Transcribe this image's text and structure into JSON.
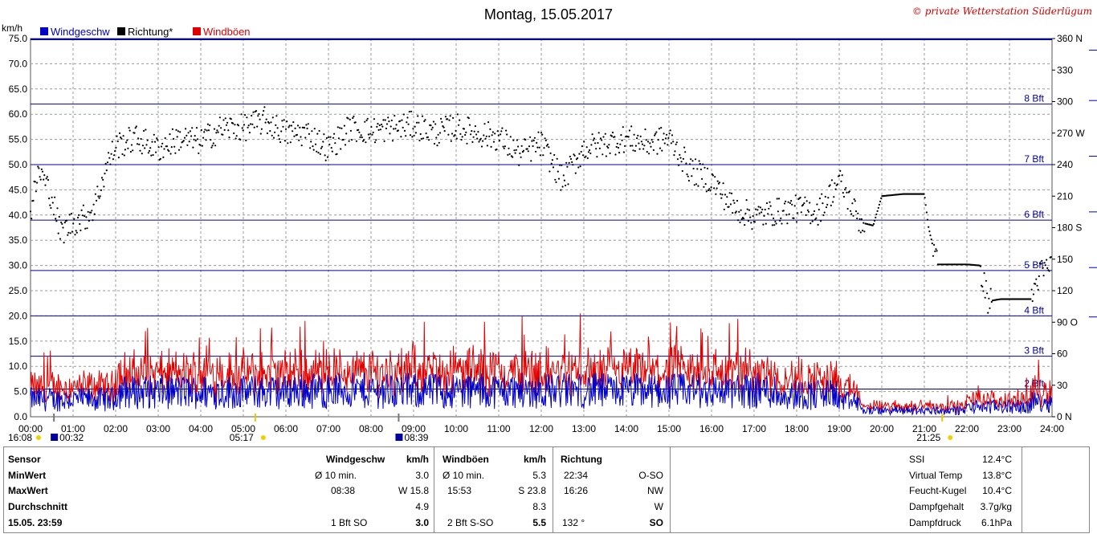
{
  "chart_data": {
    "type": "line",
    "title": "Montag, 15.05.2017",
    "copyright": "© private Wetterstation Süderlügum",
    "ylabel": "km/h",
    "ylim": [
      0,
      75
    ],
    "y_ticks": [
      "0.0",
      "5.0",
      "10.0",
      "15.0",
      "20.0",
      "25.0",
      "30.0",
      "35.0",
      "40.0",
      "45.0",
      "50.0",
      "55.0",
      "60.0",
      "65.0",
      "70.0",
      "75.0"
    ],
    "right_axis_ticks": [
      {
        "v": 0,
        "label": "0 N"
      },
      {
        "v": 30,
        "label": "30"
      },
      {
        "v": 60,
        "label": "60"
      },
      {
        "v": 90,
        "label": "90 O"
      },
      {
        "v": 120,
        "label": "120"
      },
      {
        "v": 150,
        "label": "150"
      },
      {
        "v": 180,
        "label": "180 S"
      },
      {
        "v": 210,
        "label": "210"
      },
      {
        "v": 240,
        "label": "240"
      },
      {
        "v": 270,
        "label": "270 W"
      },
      {
        "v": 300,
        "label": "300"
      },
      {
        "v": 330,
        "label": "330"
      },
      {
        "v": 360,
        "label": "360 N"
      }
    ],
    "x_ticks": [
      "00:00",
      "01:00",
      "02:00",
      "03:00",
      "04:00",
      "05:00",
      "06:00",
      "07:00",
      "08:00",
      "09:00",
      "10:00",
      "11:00",
      "12:00",
      "13:00",
      "14:00",
      "15:00",
      "16:00",
      "17:00",
      "18:00",
      "19:00",
      "20:00",
      "21:00",
      "22:00",
      "23:00",
      "24:00"
    ],
    "xlim": [
      0,
      24
    ],
    "beaufort_lines": [
      {
        "label": "2 Bft",
        "value": 5.5
      },
      {
        "label": "3 Bft",
        "value": 12
      },
      {
        "label": "4 Bft",
        "value": 20
      },
      {
        "label": "5 Bft",
        "value": 29
      },
      {
        "label": "6 Bft",
        "value": 39
      },
      {
        "label": "7 Bft",
        "value": 50
      },
      {
        "label": "8 Bft",
        "value": 62
      }
    ],
    "legend": [
      {
        "label": "Windgeschw",
        "color": "#0000c8"
      },
      {
        "label": "Richtung*",
        "color": "#000000"
      },
      {
        "label": "Windböen",
        "color": "#e00000"
      }
    ],
    "series": [
      {
        "name": "Windgeschw",
        "color": "#0000c8",
        "mean": 4.9,
        "max": 15.8
      },
      {
        "name": "Windböen",
        "color": "#e00000",
        "mean": 8.3,
        "max": 23.8
      },
      {
        "name": "Richtung*",
        "color": "#000000",
        "x": [
          0.0,
          0.2,
          0.5,
          0.7,
          1.0,
          1.3,
          1.5,
          1.8,
          2.0,
          2.5,
          3.0,
          3.5,
          4.0,
          4.5,
          5.0,
          5.5,
          6.0,
          6.5,
          7.0,
          7.5,
          8.0,
          8.5,
          9.0,
          9.5,
          10.0,
          10.5,
          11.0,
          11.5,
          12.0,
          12.5,
          13.0,
          13.5,
          14.0,
          14.5,
          15.0,
          15.5,
          16.0,
          16.5,
          17.0,
          17.5,
          18.0,
          18.5,
          19.0,
          19.5,
          19.8,
          20.0,
          20.5,
          21.0,
          21.1,
          21.3,
          21.5,
          22.0,
          22.3,
          22.5,
          22.8,
          23.0,
          23.5,
          23.7,
          24.0
        ],
        "y": [
          195,
          235,
          210,
          175,
          185,
          190,
          200,
          240,
          258,
          265,
          255,
          265,
          262,
          275,
          275,
          282,
          270,
          270,
          255,
          275,
          272,
          275,
          278,
          270,
          276,
          270,
          266,
          250,
          260,
          225,
          255,
          260,
          265,
          260,
          265,
          235,
          225,
          200,
          190,
          195,
          198,
          195,
          225,
          185,
          182,
          210,
          212,
          212,
          180,
          145,
          145,
          145,
          144,
          110,
          112,
          112,
          112,
          135,
          145
        ]
      }
    ],
    "sun_markers": [
      {
        "time_label": "05:17",
        "x": 5.28
      },
      {
        "time_label": "21:25",
        "x": 21.42
      }
    ],
    "moon_markers": [
      {
        "time_label": "16:08",
        "x": 0.1
      },
      {
        "time_label": "00:32",
        "x": 0.55
      },
      {
        "time_label": "08:39",
        "x": 8.65
      }
    ]
  },
  "table": {
    "col1": {
      "rows": [
        "Sensor",
        "MinWert",
        "MaxWert",
        "Durchschnitt",
        "15.05. 23:59"
      ]
    },
    "speed": {
      "header": "Windgeschw",
      "unit": "km/h",
      "min_label": "Ø 10 min.",
      "min_value": "3.0",
      "max_time": "08:38",
      "max_value": "W 15.8",
      "avg": "4.9",
      "current_label": "1 Bft SO",
      "current_value": "3.0"
    },
    "gust": {
      "header": "Windböen",
      "unit": "km/h",
      "min_label": "Ø 10 min.",
      "min_value": "5.3",
      "max_time": "15:53",
      "max_value": "S 23.8",
      "avg": "8.3",
      "current_label": "2 Bft S-SO",
      "current_value": "5.5"
    },
    "dir": {
      "header": "Richtung",
      "min_time": "22:34",
      "min_value": "O-SO",
      "max_time": "16:26",
      "max_value": "NW",
      "avg": "W",
      "current_label": "132 °",
      "current_value": "SO"
    },
    "extra": [
      {
        "label": "SSI",
        "value": "12.4°C"
      },
      {
        "label": "Virtual Temp",
        "value": "13.8°C"
      },
      {
        "label": "Feucht-Kugel",
        "value": "10.4°C"
      },
      {
        "label": "Dampfgehalt",
        "value": "3.7g/kg"
      },
      {
        "label": "Dampfdruck",
        "value": "6.1hPa"
      }
    ]
  }
}
